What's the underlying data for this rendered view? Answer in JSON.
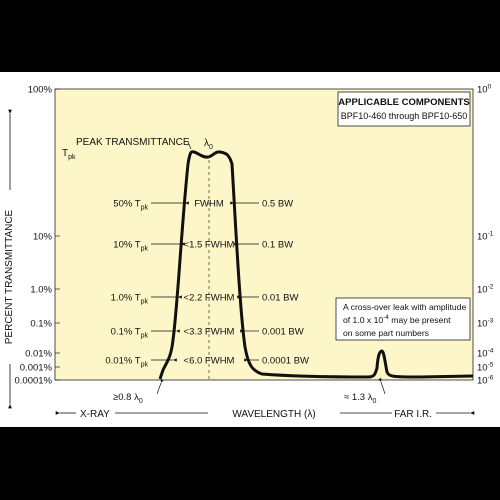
{
  "chart_data": {
    "type": "line",
    "title": "",
    "ylabel": "PERCENT TRANSMITTANCE",
    "xlabel": "WAVELENGTH (λ)",
    "x_left_label": "X-RAY",
    "x_right_label": "FAR I.R.",
    "y_ticks_left": [
      "100%",
      "10%",
      "1.0%",
      "0.1%",
      "0.01%",
      "0.001%",
      "0.0001%"
    ],
    "y_ticks_right": [
      {
        "base": "10",
        "exp": "0"
      },
      {
        "base": "10",
        "exp": "-1"
      },
      {
        "base": "10",
        "exp": "-2"
      },
      {
        "base": "10",
        "exp": "-3"
      },
      {
        "base": "10",
        "exp": "-4"
      },
      {
        "base": "10",
        "exp": "-5"
      },
      {
        "base": "10",
        "exp": "-6"
      }
    ],
    "peak_label": "PEAK TRANSMITTANCE",
    "tpk": {
      "base": "T",
      "sub": "pk"
    },
    "lambda0": {
      "base": "λ",
      "sub": "0"
    },
    "levels": [
      {
        "pct": "50% ",
        "width": "FWHM",
        "bw": "0.5 BW"
      },
      {
        "pct": "10% ",
        "width": "<1.5 FWHM",
        "bw": "0.1 BW"
      },
      {
        "pct": "1.0% ",
        "width": "<2.2 FWHM",
        "bw": "0.01 BW"
      },
      {
        "pct": "0.1% ",
        "width": "<3.3 FWHM",
        "bw": "0.001 BW"
      },
      {
        "pct": "0.01% ",
        "width": "<6.0 FWHM",
        "bw": "0.0001 BW"
      }
    ],
    "left_marker": {
      "prefix": "≥0.8 ",
      "lambda": "λ",
      "sub": "0"
    },
    "right_marker": {
      "prefix": "≈ 1.3 ",
      "lambda": "λ",
      "sub": "0"
    },
    "components_box": {
      "title": "APPLICABLE COMPONENTS",
      "text": "BPF10-460 through BPF10-650"
    },
    "leak_note": {
      "line1": "A cross-over leak with amplitude",
      "line2_a": "of 1.0 x 10",
      "line2_exp": "-4",
      "line2_b": " may be present",
      "line3": "on some part numbers"
    }
  }
}
